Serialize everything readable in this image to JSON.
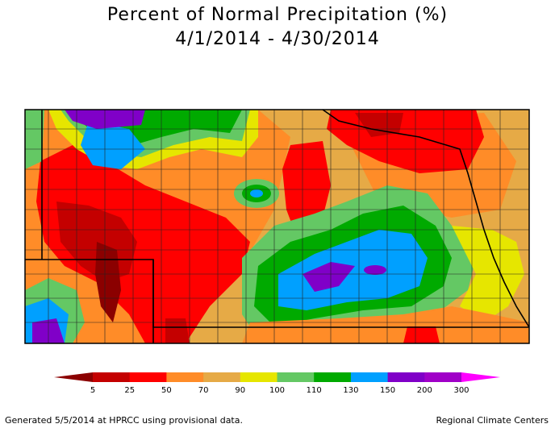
{
  "title": {
    "line1": "Percent of Normal Precipitation (%)",
    "line2": "4/1/2014 - 4/30/2014"
  },
  "legend": {
    "colors": [
      "#8b0000",
      "#c40000",
      "#ff0000",
      "#ff8c28",
      "#e6aa46",
      "#e6e600",
      "#64c864",
      "#00aa00",
      "#00a0ff",
      "#8000c8",
      "#a000c8",
      "#ff00ff"
    ],
    "labels": [
      "5",
      "25",
      "50",
      "70",
      "90",
      "100",
      "110",
      "130",
      "150",
      "200",
      "300"
    ]
  },
  "footer": {
    "left": "Generated 5/5/2014 at HPRCC using provisional data.",
    "right": "Regional Climate Centers"
  }
}
